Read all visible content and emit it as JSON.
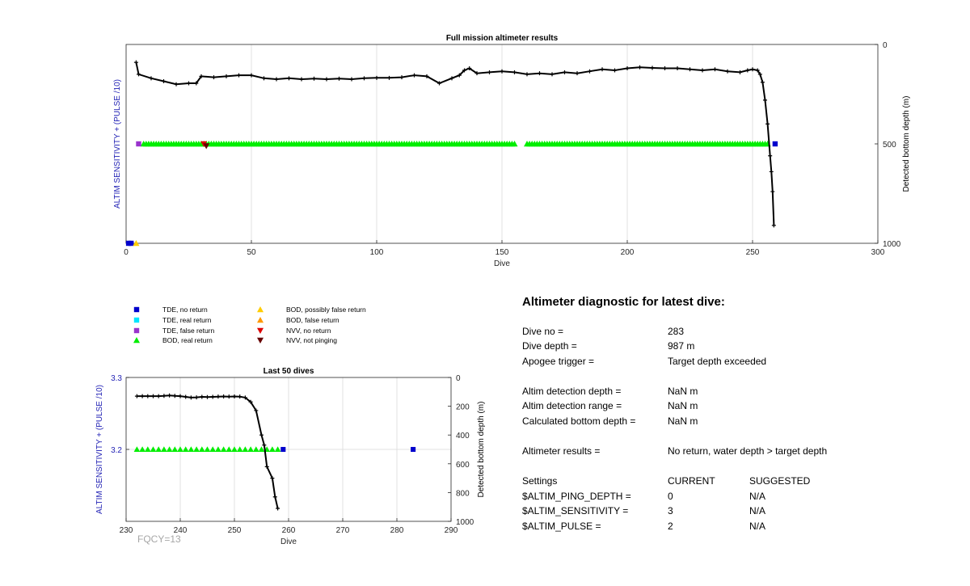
{
  "chart_data": [
    {
      "type": "line",
      "title": "Full mission altimeter results",
      "xlabel": "Dive",
      "ylabel_left": "ALTIM SENSITIVITY + (PULSE /10)",
      "ylabel_right": "Detected bottom depth (m)",
      "xlim": [
        0,
        300
      ],
      "xticks": [
        0,
        50,
        100,
        150,
        200,
        250,
        300
      ],
      "ylim_right": [
        0,
        1000
      ],
      "yticks_right": [
        0,
        500,
        1000
      ],
      "y_right_reversed": true,
      "grid": "vertical",
      "depth_series": {
        "name": "",
        "color": "#000000",
        "points": [
          [
            4,
            90
          ],
          [
            5,
            150
          ],
          [
            10,
            170
          ],
          [
            15,
            185
          ],
          [
            20,
            200
          ],
          [
            25,
            195
          ],
          [
            28,
            195
          ],
          [
            30,
            160
          ],
          [
            35,
            165
          ],
          [
            40,
            160
          ],
          [
            45,
            155
          ],
          [
            50,
            155
          ],
          [
            55,
            170
          ],
          [
            60,
            175
          ],
          [
            65,
            170
          ],
          [
            70,
            175
          ],
          [
            75,
            172
          ],
          [
            80,
            175
          ],
          [
            85,
            172
          ],
          [
            90,
            175
          ],
          [
            95,
            170
          ],
          [
            100,
            168
          ],
          [
            105,
            168
          ],
          [
            110,
            165
          ],
          [
            115,
            155
          ],
          [
            120,
            160
          ],
          [
            125,
            195
          ],
          [
            130,
            170
          ],
          [
            133,
            155
          ],
          [
            135,
            130
          ],
          [
            137,
            120
          ],
          [
            140,
            145
          ],
          [
            145,
            140
          ],
          [
            150,
            135
          ],
          [
            155,
            140
          ],
          [
            160,
            150
          ],
          [
            165,
            145
          ],
          [
            170,
            150
          ],
          [
            175,
            140
          ],
          [
            180,
            145
          ],
          [
            185,
            135
          ],
          [
            190,
            125
          ],
          [
            195,
            130
          ],
          [
            200,
            120
          ],
          [
            205,
            115
          ],
          [
            210,
            118
          ],
          [
            215,
            120
          ],
          [
            220,
            120
          ],
          [
            225,
            125
          ],
          [
            230,
            130
          ],
          [
            235,
            125
          ],
          [
            240,
            135
          ],
          [
            245,
            140
          ],
          [
            248,
            130
          ],
          [
            250,
            125
          ],
          [
            252,
            130
          ],
          [
            253,
            150
          ],
          [
            254,
            190
          ],
          [
            255,
            280
          ],
          [
            256,
            400
          ],
          [
            257,
            560
          ],
          [
            257.5,
            640
          ],
          [
            258,
            740
          ],
          [
            258.5,
            910
          ]
        ]
      },
      "markers": [
        {
          "type": "BOD, real return",
          "depth": 500,
          "x_range": [
            7,
            155
          ],
          "step": 1,
          "color": "#00ee00"
        },
        {
          "type": "BOD, real return",
          "depth": 500,
          "x_range": [
            160,
            256
          ],
          "step": 1,
          "color": "#00ee00"
        },
        {
          "type": "TDE, false return",
          "x": 5,
          "depth": 500,
          "color": "#9933cc"
        },
        {
          "type": "NVV, no return",
          "x": 31,
          "depth": 500,
          "color": "#dd0000"
        },
        {
          "type": "NVV, not pinging",
          "x": 32,
          "depth": 510,
          "color": "#660000"
        },
        {
          "type": "TDE, no return",
          "x": 259,
          "depth": 500,
          "color": "#0000cc"
        },
        {
          "type": "TDE, no return",
          "x": 1,
          "depth": 1000,
          "color": "#0000cc"
        },
        {
          "type": "TDE, no return",
          "x": 2,
          "depth": 1000,
          "color": "#0000cc"
        },
        {
          "type": "BOD, possibly false return",
          "x": 4,
          "depth": 1000,
          "color": "#ffcc00"
        }
      ]
    },
    {
      "type": "line",
      "title": "Last 50 dives",
      "xlabel": "Dive",
      "ylabel_left": "ALTIM SENSITIVITY + (PULSE /10)",
      "ylabel_right": "Detected bottom depth (m)",
      "xlim": [
        230,
        290
      ],
      "xticks": [
        230,
        240,
        250,
        260,
        270,
        280,
        290
      ],
      "ylim_left": [
        3.1,
        3.3
      ],
      "yticks_left": [
        3.2,
        3.3
      ],
      "ylim_right": [
        0,
        1000
      ],
      "yticks_right": [
        0,
        200,
        400,
        600,
        800,
        1000
      ],
      "y_right_reversed": true,
      "grid": "vertical",
      "annotation": "FQCY=13",
      "depth_series": {
        "name": "",
        "color": "#000000",
        "points": [
          [
            232,
            130
          ],
          [
            233,
            130
          ],
          [
            234,
            130
          ],
          [
            235,
            130
          ],
          [
            236,
            130
          ],
          [
            237,
            128
          ],
          [
            238,
            125
          ],
          [
            239,
            128
          ],
          [
            240,
            130
          ],
          [
            241,
            135
          ],
          [
            242,
            140
          ],
          [
            243,
            138
          ],
          [
            244,
            135
          ],
          [
            245,
            136
          ],
          [
            246,
            135
          ],
          [
            247,
            133
          ],
          [
            248,
            132
          ],
          [
            249,
            133
          ],
          [
            250,
            132
          ],
          [
            251,
            133
          ],
          [
            252,
            140
          ],
          [
            253,
            170
          ],
          [
            254,
            230
          ],
          [
            255,
            400
          ],
          [
            255.5,
            470
          ],
          [
            256,
            620
          ],
          [
            257,
            700
          ],
          [
            257.5,
            830
          ],
          [
            258,
            910
          ]
        ]
      },
      "markers": [
        {
          "type": "BOD, real return",
          "depth": 500,
          "x_range": [
            232,
            258
          ],
          "step": 1,
          "color": "#00ee00"
        },
        {
          "type": "TDE, no return",
          "x": 259,
          "depth": 500,
          "color": "#0000cc"
        },
        {
          "type": "TDE, no return",
          "x": 283,
          "depth": 500,
          "color": "#0000cc"
        }
      ]
    }
  ],
  "legend": [
    {
      "label": "TDE, no return",
      "shape": "square",
      "color": "#0000cc"
    },
    {
      "label": "TDE, real return",
      "shape": "square",
      "color": "#00e5ff"
    },
    {
      "label": "TDE, false return",
      "shape": "square",
      "color": "#9933cc"
    },
    {
      "label": "BOD, real return",
      "shape": "triangle-up",
      "color": "#00ee00"
    },
    {
      "label": "BOD, possibly false return",
      "shape": "triangle-up",
      "color": "#ffcc00"
    },
    {
      "label": "BOD, false return",
      "shape": "triangle-up",
      "color": "#ff9900"
    },
    {
      "label": "NVV, no return",
      "shape": "triangle-down",
      "color": "#dd0000"
    },
    {
      "label": "NVV, not pinging",
      "shape": "triangle-down",
      "color": "#660000"
    }
  ],
  "diagnostic": {
    "title": "Altimeter diagnostic for latest dive:",
    "rows": [
      {
        "label": "Dive no =",
        "value": "283"
      },
      {
        "label": "Dive depth =",
        "value": "987 m"
      },
      {
        "label": "Apogee trigger =",
        "value": "Target depth exceeded"
      },
      {
        "label": "Altim detection depth =",
        "value": "NaN m"
      },
      {
        "label": "Altim detection range =",
        "value": "NaN m"
      },
      {
        "label": "Calculated bottom depth =",
        "value": "NaN m"
      },
      {
        "label": "Altimeter results =",
        "value": "No return, water depth > target depth"
      }
    ],
    "settings_header": {
      "label": "Settings",
      "current": "CURRENT",
      "suggested": "SUGGESTED"
    },
    "settings": [
      {
        "label": "$ALTIM_PING_DEPTH =",
        "current": "0",
        "suggested": "N/A"
      },
      {
        "label": "$ALTIM_SENSITIVITY =",
        "current": "3",
        "suggested": "N/A"
      },
      {
        "label": "$ALTIM_PULSE =",
        "current": "2",
        "suggested": "N/A"
      }
    ]
  },
  "colors": {
    "axis_label_left": "#1f1fb4",
    "annotation": "#a6a6a6",
    "grid": "#e0e0e0"
  }
}
